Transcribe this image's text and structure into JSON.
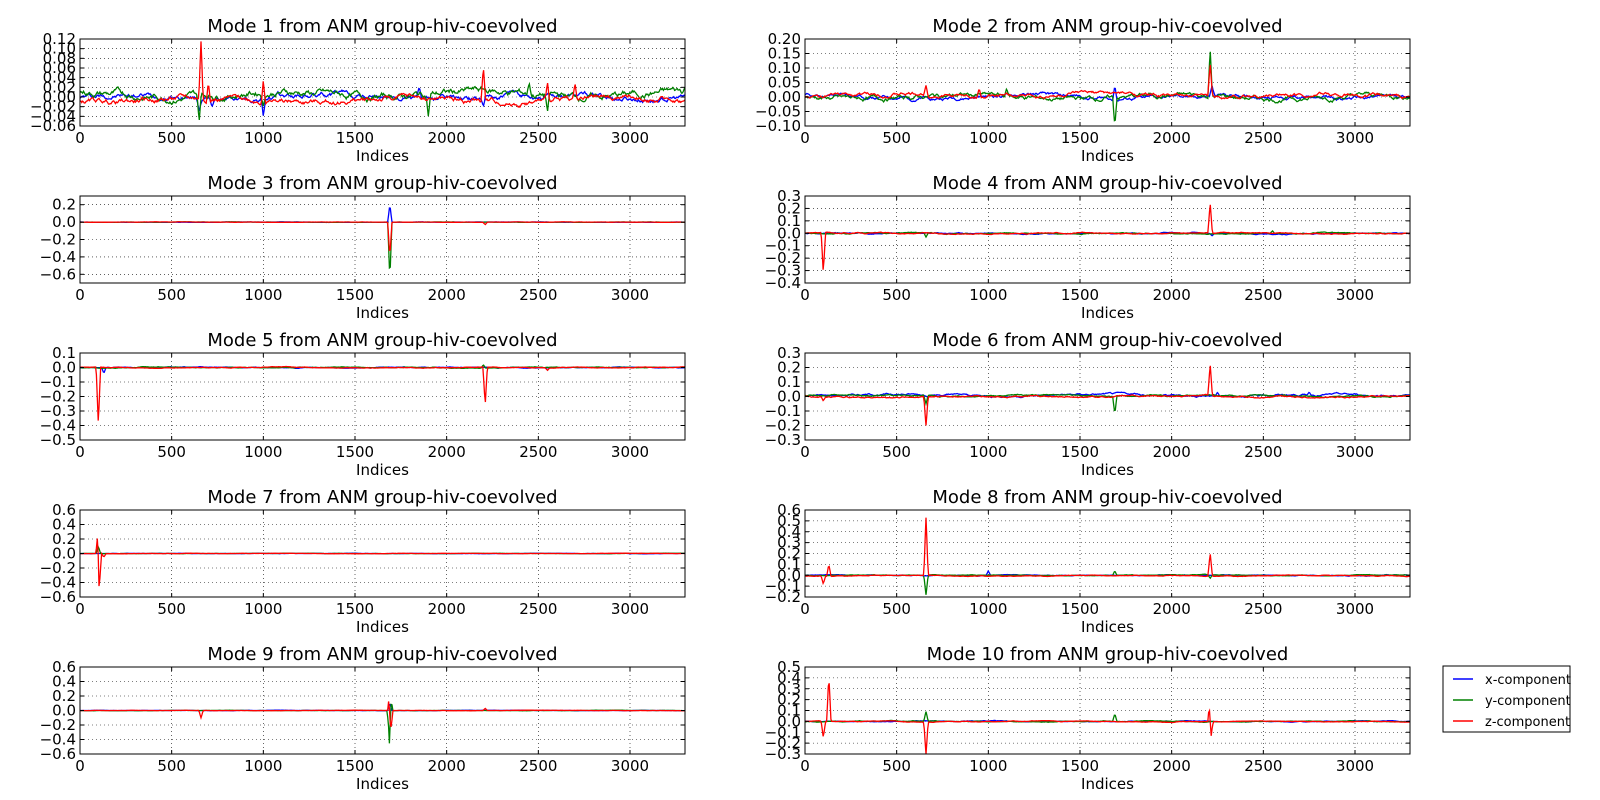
{
  "figure": {
    "legend": {
      "placement": "right, beside bottom-right subplot",
      "entries": [
        {
          "label": "x-component",
          "color": "#0000ff"
        },
        {
          "label": "y-component",
          "color": "#008000"
        },
        {
          "label": "z-component",
          "color": "#ff0000"
        }
      ]
    }
  },
  "chart_data": [
    {
      "type": "line",
      "title": "Mode 1 from ANM group-hiv-coevolved",
      "xlabel": "Indices",
      "ylabel": "",
      "xlim": [
        0,
        3300
      ],
      "ylim": [
        -0.06,
        0.12
      ],
      "xticks": [
        0,
        500,
        1000,
        1500,
        2000,
        2500,
        3000
      ],
      "yticks": [
        -0.06,
        -0.04,
        -0.02,
        0.0,
        0.02,
        0.04,
        0.06,
        0.08,
        0.1,
        0.12
      ],
      "ytick_decimals": 2,
      "grid": true,
      "baseline": {
        "x": 0.0,
        "y": 0.006,
        "z": -0.006
      },
      "noise": {
        "x": 0.007,
        "y": 0.009,
        "z": 0.007
      },
      "series": [
        {
          "name": "x-component",
          "color": "#0000ff",
          "spikes": [
            [
              650,
              -0.03
            ],
            [
              720,
              -0.02
            ],
            [
              1000,
              -0.04
            ],
            [
              1850,
              0.02
            ],
            [
              2200,
              -0.02
            ]
          ]
        },
        {
          "name": "y-component",
          "color": "#008000",
          "spikes": [
            [
              650,
              -0.05
            ],
            [
              1000,
              -0.02
            ],
            [
              1900,
              -0.04
            ],
            [
              2450,
              0.03
            ],
            [
              2550,
              -0.03
            ],
            [
              3300,
              0.02
            ]
          ]
        },
        {
          "name": "z-component",
          "color": "#ff0000",
          "spikes": [
            [
              660,
              0.115
            ],
            [
              700,
              0.03
            ],
            [
              1000,
              0.035
            ],
            [
              2200,
              0.065
            ],
            [
              2550,
              0.03
            ],
            [
              2700,
              0.03
            ]
          ]
        }
      ]
    },
    {
      "type": "line",
      "title": "Mode 2 from ANM group-hiv-coevolved",
      "xlabel": "Indices",
      "ylabel": "",
      "xlim": [
        0,
        3300
      ],
      "ylim": [
        -0.1,
        0.2
      ],
      "xticks": [
        0,
        500,
        1000,
        1500,
        2000,
        2500,
        3000
      ],
      "yticks": [
        -0.1,
        -0.05,
        0.0,
        0.05,
        0.1,
        0.15,
        0.2
      ],
      "ytick_decimals": 2,
      "grid": true,
      "baseline": {
        "x": 0.0,
        "y": 0.0,
        "z": 0.005
      },
      "noise": {
        "x": 0.008,
        "y": 0.01,
        "z": 0.008
      },
      "series": [
        {
          "name": "x-component",
          "color": "#0000ff",
          "spikes": [
            [
              1690,
              0.04
            ],
            [
              2220,
              0.04
            ]
          ]
        },
        {
          "name": "y-component",
          "color": "#008000",
          "spikes": [
            [
              1690,
              -0.1
            ],
            [
              2210,
              0.17
            ],
            [
              1100,
              0.03
            ]
          ]
        },
        {
          "name": "z-component",
          "color": "#ff0000",
          "spikes": [
            [
              660,
              0.04
            ],
            [
              2210,
              0.12
            ],
            [
              950,
              0.03
            ]
          ]
        }
      ]
    },
    {
      "type": "line",
      "title": "Mode 3 from ANM group-hiv-coevolved",
      "xlabel": "Indices",
      "ylabel": "",
      "xlim": [
        0,
        3300
      ],
      "ylim": [
        -0.7,
        0.3
      ],
      "xticks": [
        0,
        500,
        1000,
        1500,
        2000,
        2500,
        3000
      ],
      "yticks": [
        -0.6,
        -0.4,
        -0.2,
        0.0,
        0.2
      ],
      "ytick_decimals": 1,
      "grid": true,
      "baseline": {
        "x": 0.0,
        "y": 0.0,
        "z": 0.0
      },
      "noise": {
        "x": 0.002,
        "y": 0.002,
        "z": 0.002
      },
      "series": [
        {
          "name": "x-component",
          "color": "#0000ff",
          "spikes": [
            [
              1690,
              0.2
            ]
          ]
        },
        {
          "name": "y-component",
          "color": "#008000",
          "spikes": [
            [
              1690,
              -0.65
            ]
          ]
        },
        {
          "name": "z-component",
          "color": "#ff0000",
          "spikes": [
            [
              1690,
              -0.4
            ],
            [
              2210,
              -0.03
            ]
          ]
        }
      ]
    },
    {
      "type": "line",
      "title": "Mode 4 from ANM group-hiv-coevolved",
      "xlabel": "Indices",
      "ylabel": "",
      "xlim": [
        0,
        3300
      ],
      "ylim": [
        -0.4,
        0.3
      ],
      "xticks": [
        0,
        500,
        1000,
        1500,
        2000,
        2500,
        3000
      ],
      "yticks": [
        -0.4,
        -0.3,
        -0.2,
        -0.1,
        0.0,
        0.1,
        0.2,
        0.3
      ],
      "ytick_decimals": 1,
      "grid": true,
      "baseline": {
        "x": 0.0,
        "y": 0.0,
        "z": 0.0
      },
      "noise": {
        "x": 0.005,
        "y": 0.005,
        "z": 0.005
      },
      "series": [
        {
          "name": "x-component",
          "color": "#0000ff",
          "spikes": [
            [
              2220,
              -0.02
            ]
          ]
        },
        {
          "name": "y-component",
          "color": "#008000",
          "spikes": [
            [
              660,
              -0.03
            ],
            [
              2550,
              0.02
            ]
          ]
        },
        {
          "name": "z-component",
          "color": "#ff0000",
          "spikes": [
            [
              100,
              -0.32
            ],
            [
              2210,
              0.25
            ]
          ]
        }
      ]
    },
    {
      "type": "line",
      "title": "Mode 5 from ANM group-hiv-coevolved",
      "xlabel": "Indices",
      "ylabel": "",
      "xlim": [
        0,
        3300
      ],
      "ylim": [
        -0.5,
        0.1
      ],
      "xticks": [
        0,
        500,
        1000,
        1500,
        2000,
        2500,
        3000
      ],
      "yticks": [
        -0.5,
        -0.4,
        -0.3,
        -0.2,
        -0.1,
        0.0,
        0.1
      ],
      "ytick_decimals": 1,
      "grid": true,
      "baseline": {
        "x": 0.0,
        "y": 0.0,
        "z": 0.0
      },
      "noise": {
        "x": 0.003,
        "y": 0.003,
        "z": 0.003
      },
      "series": [
        {
          "name": "x-component",
          "color": "#0000ff",
          "spikes": [
            [
              130,
              -0.04
            ]
          ]
        },
        {
          "name": "y-component",
          "color": "#008000",
          "spikes": [
            [
              2200,
              0.02
            ]
          ]
        },
        {
          "name": "z-component",
          "color": "#ff0000",
          "spikes": [
            [
              100,
              -0.4
            ],
            [
              2210,
              -0.26
            ],
            [
              2550,
              -0.02
            ]
          ]
        }
      ]
    },
    {
      "type": "line",
      "title": "Mode 6 from ANM group-hiv-coevolved",
      "xlabel": "Indices",
      "ylabel": "",
      "xlim": [
        0,
        3300
      ],
      "ylim": [
        -0.3,
        0.3
      ],
      "xticks": [
        0,
        500,
        1000,
        1500,
        2000,
        2500,
        3000
      ],
      "yticks": [
        -0.3,
        -0.2,
        -0.1,
        0.0,
        0.1,
        0.2,
        0.3
      ],
      "ytick_decimals": 1,
      "grid": true,
      "baseline": {
        "x": 0.01,
        "y": 0.005,
        "z": 0.0
      },
      "noise": {
        "x": 0.008,
        "y": 0.006,
        "z": 0.006
      },
      "series": [
        {
          "name": "x-component",
          "color": "#0000ff",
          "spikes": [
            [
              2250,
              0.03
            ],
            [
              2750,
              0.03
            ]
          ]
        },
        {
          "name": "y-component",
          "color": "#008000",
          "spikes": [
            [
              1690,
              -0.12
            ],
            [
              660,
              -0.05
            ]
          ]
        },
        {
          "name": "z-component",
          "color": "#ff0000",
          "spikes": [
            [
              660,
              -0.2
            ],
            [
              2210,
              0.23
            ],
            [
              100,
              -0.03
            ]
          ]
        }
      ]
    },
    {
      "type": "line",
      "title": "Mode 7 from ANM group-hiv-coevolved",
      "xlabel": "Indices",
      "ylabel": "",
      "xlim": [
        0,
        3300
      ],
      "ylim": [
        -0.6,
        0.6
      ],
      "xticks": [
        0,
        500,
        1000,
        1500,
        2000,
        2500,
        3000
      ],
      "yticks": [
        -0.6,
        -0.4,
        -0.2,
        0.0,
        0.2,
        0.4,
        0.6
      ],
      "ytick_decimals": 1,
      "grid": true,
      "baseline": {
        "x": 0.0,
        "y": 0.0,
        "z": 0.0
      },
      "noise": {
        "x": 0.002,
        "y": 0.002,
        "z": 0.002
      },
      "series": [
        {
          "name": "x-component",
          "color": "#0000ff",
          "spikes": []
        },
        {
          "name": "y-component",
          "color": "#008000",
          "spikes": [
            [
              100,
              0.1
            ]
          ]
        },
        {
          "name": "z-component",
          "color": "#ff0000",
          "spikes": [
            [
              100,
              0.57
            ],
            [
              105,
              -0.55
            ],
            [
              130,
              -0.05
            ]
          ]
        }
      ]
    },
    {
      "type": "line",
      "title": "Mode 8 from ANM group-hiv-coevolved",
      "xlabel": "Indices",
      "ylabel": "",
      "xlim": [
        0,
        3300
      ],
      "ylim": [
        -0.2,
        0.6
      ],
      "xticks": [
        0,
        500,
        1000,
        1500,
        2000,
        2500,
        3000
      ],
      "yticks": [
        -0.2,
        -0.1,
        0.0,
        0.1,
        0.2,
        0.3,
        0.4,
        0.5,
        0.6
      ],
      "ytick_decimals": 1,
      "grid": true,
      "baseline": {
        "x": 0.0,
        "y": 0.0,
        "z": -0.005
      },
      "noise": {
        "x": 0.004,
        "y": 0.004,
        "z": 0.004
      },
      "series": [
        {
          "name": "x-component",
          "color": "#0000ff",
          "spikes": [
            [
              1000,
              0.04
            ]
          ]
        },
        {
          "name": "y-component",
          "color": "#008000",
          "spikes": [
            [
              660,
              -0.18
            ],
            [
              1690,
              0.04
            ],
            [
              2210,
              -0.03
            ]
          ]
        },
        {
          "name": "z-component",
          "color": "#ff0000",
          "spikes": [
            [
              660,
              0.53
            ],
            [
              100,
              -0.08
            ],
            [
              130,
              0.1
            ],
            [
              2210,
              0.21
            ]
          ]
        }
      ]
    },
    {
      "type": "line",
      "title": "Mode 9 from ANM group-hiv-coevolved",
      "xlabel": "Indices",
      "ylabel": "",
      "xlim": [
        0,
        3300
      ],
      "ylim": [
        -0.6,
        0.6
      ],
      "xticks": [
        0,
        500,
        1000,
        1500,
        2000,
        2500,
        3000
      ],
      "yticks": [
        -0.6,
        -0.4,
        -0.2,
        0.0,
        0.2,
        0.4,
        0.6
      ],
      "ytick_decimals": 1,
      "grid": true,
      "baseline": {
        "x": 0.0,
        "y": 0.0,
        "z": 0.0
      },
      "noise": {
        "x": 0.002,
        "y": 0.002,
        "z": 0.002
      },
      "series": [
        {
          "name": "x-component",
          "color": "#0000ff",
          "spikes": [
            [
              1690,
              0.1
            ]
          ]
        },
        {
          "name": "y-component",
          "color": "#008000",
          "spikes": [
            [
              1692,
              0.45
            ],
            [
              1688,
              -0.47
            ]
          ]
        },
        {
          "name": "z-component",
          "color": "#ff0000",
          "spikes": [
            [
              660,
              -0.1
            ],
            [
              1690,
              0.3
            ],
            [
              1695,
              -0.3
            ],
            [
              2210,
              0.03
            ]
          ]
        }
      ]
    },
    {
      "type": "line",
      "title": "Mode 10 from ANM group-hiv-coevolved",
      "xlabel": "Indices",
      "ylabel": "",
      "xlim": [
        0,
        3300
      ],
      "ylim": [
        -0.3,
        0.5
      ],
      "xticks": [
        0,
        500,
        1000,
        1500,
        2000,
        2500,
        3000
      ],
      "yticks": [
        -0.3,
        -0.2,
        -0.1,
        0.0,
        0.1,
        0.2,
        0.3,
        0.4,
        0.5
      ],
      "ytick_decimals": 1,
      "grid": true,
      "baseline": {
        "x": 0.0,
        "y": 0.0,
        "z": 0.0
      },
      "noise": {
        "x": 0.004,
        "y": 0.004,
        "z": 0.004
      },
      "series": [
        {
          "name": "x-component",
          "color": "#0000ff",
          "spikes": []
        },
        {
          "name": "y-component",
          "color": "#008000",
          "spikes": [
            [
              660,
              0.09
            ],
            [
              1690,
              0.07
            ]
          ]
        },
        {
          "name": "z-component",
          "color": "#ff0000",
          "spikes": [
            [
              100,
              -0.15
            ],
            [
              130,
              0.42
            ],
            [
              660,
              -0.3
            ],
            [
              2210,
              0.28
            ],
            [
              2215,
              -0.15
            ]
          ]
        }
      ]
    }
  ]
}
